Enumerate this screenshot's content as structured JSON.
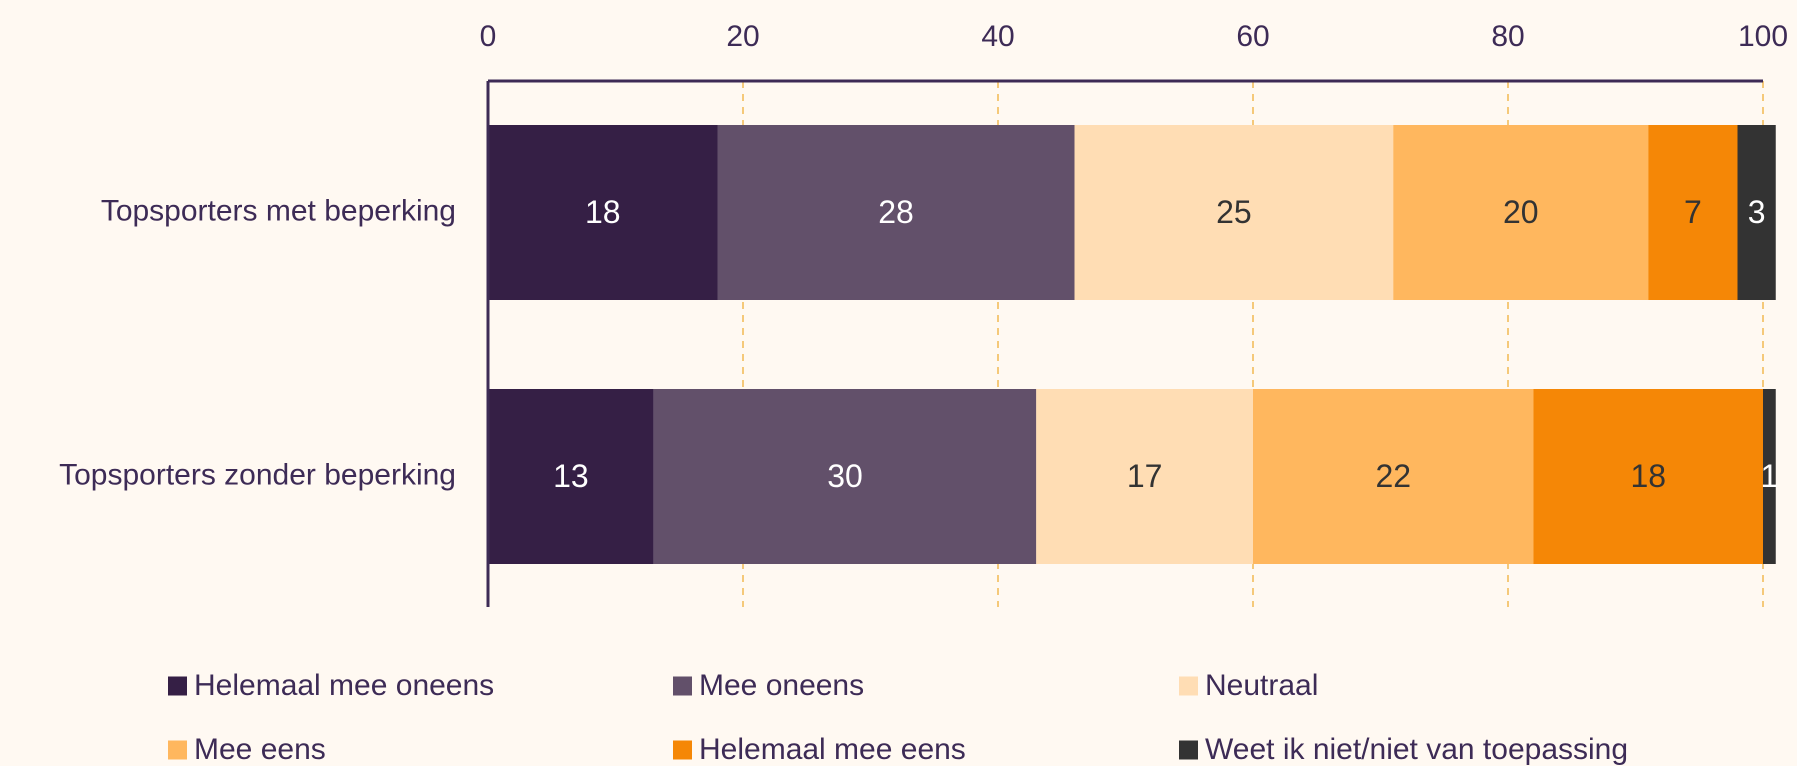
{
  "chart_data": {
    "type": "bar",
    "orientation": "horizontal",
    "stacked": true,
    "categories": [
      "Topsporters met beperking",
      "Topsporters zonder beperking"
    ],
    "series": [
      {
        "name": "Helemaal mee oneens",
        "values": [
          18,
          13
        ],
        "color": "#351f45",
        "label_color": "#ffffff"
      },
      {
        "name": "Mee oneens",
        "values": [
          28,
          30
        ],
        "color": "#62506a",
        "label_color": "#ffffff"
      },
      {
        "name": "Neutraal",
        "values": [
          25,
          17
        ],
        "color": "#ffddb4",
        "label_color": "#333333"
      },
      {
        "name": "Mee eens",
        "values": [
          20,
          22
        ],
        "color": "#ffb75e",
        "label_color": "#333333"
      },
      {
        "name": "Helemaal mee eens",
        "values": [
          7,
          18
        ],
        "color": "#f58706",
        "label_color": "#333333"
      },
      {
        "name": "Weet ik niet/niet van toepassing",
        "values": [
          3,
          1
        ],
        "color": "#333333",
        "label_color": "#ffffff"
      }
    ],
    "xlim": [
      0,
      100
    ],
    "x_ticks": [
      "0",
      "20",
      "40",
      "60",
      "80",
      "100"
    ],
    "x_axis_position": "top",
    "grid": {
      "vertical": true,
      "style": "dashed",
      "color": "#f5c97a"
    },
    "axis_color": "#3d2b56",
    "background": "#fff9f2",
    "legend": {
      "position": "bottom",
      "columns": 3
    },
    "title": "",
    "xlabel": "",
    "ylabel": ""
  }
}
